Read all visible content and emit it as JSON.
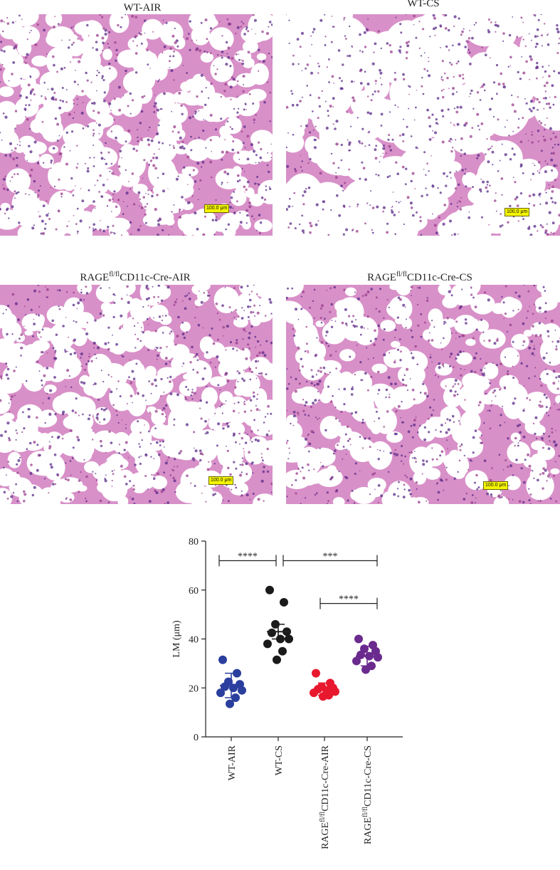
{
  "panels": [
    {
      "title": "WT-AIR",
      "title_sup": "",
      "title_post": "",
      "scale": "100.0 μm"
    },
    {
      "title": "WT-CS",
      "title_sup": "",
      "title_post": "",
      "scale": "100.0 μm"
    },
    {
      "title": "RAGE",
      "title_sup": "fl/fl",
      "title_post": "CD11c-Cre-AIR",
      "scale": "100.0 μm"
    },
    {
      "title": "RAGE",
      "title_sup": "fl/fl",
      "title_post": "CD11c-Cre-CS",
      "scale": "100.0 μm"
    }
  ],
  "chart_data": {
    "type": "scatter",
    "ylabel": "LM (μm)",
    "ylim": [
      0,
      80
    ],
    "yticks": [
      0,
      20,
      40,
      60,
      80
    ],
    "categories": [
      {
        "pre": "WT-AIR",
        "sup": "",
        "post": ""
      },
      {
        "pre": "WT-CS",
        "sup": "",
        "post": ""
      },
      {
        "pre": "RAGE",
        "sup": "fl/fl",
        "post": "CD11c-Cre-AIR"
      },
      {
        "pre": "RAGE",
        "sup": "fl/fl",
        "post": "CD11c-Cre-CS"
      }
    ],
    "series": [
      {
        "color": "#2a3f9e",
        "mean": 21,
        "sd": 5,
        "values": [
          31.5,
          26,
          22.5,
          21.5,
          20.5,
          20,
          19,
          18,
          16,
          13.5
        ]
      },
      {
        "color": "#1a1a1a",
        "mean": 43,
        "sd": 3,
        "values": [
          60,
          55,
          46,
          43,
          42.5,
          40,
          40,
          38,
          35,
          31.5
        ]
      },
      {
        "color": "#e8182e",
        "mean": 19.5,
        "sd": 2.5,
        "values": [
          26,
          22,
          20.5,
          20,
          19.5,
          19,
          18.5,
          18,
          17,
          16.5
        ]
      },
      {
        "color": "#6a2a8e",
        "mean": 33,
        "sd": 4,
        "values": [
          40,
          37.5,
          36,
          35,
          33.5,
          33,
          32.5,
          31,
          29,
          27.5
        ]
      }
    ],
    "significance": [
      {
        "from": 0,
        "to": 1,
        "label": "****",
        "y": 72
      },
      {
        "from": 1,
        "to": 3,
        "label": "***",
        "y": 72
      },
      {
        "from": 2,
        "to": 3,
        "label": "****",
        "y": 54.5
      }
    ]
  }
}
